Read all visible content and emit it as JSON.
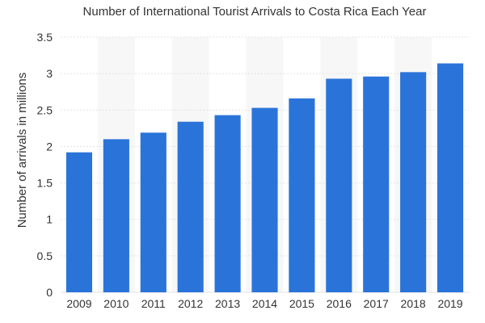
{
  "chart_data": {
    "type": "bar",
    "title": "Number of International Tourist Arrivals to Costa Rica Each Year",
    "xlabel": "",
    "ylabel": "Number of arrivals in millions",
    "categories": [
      "2009",
      "2010",
      "2011",
      "2012",
      "2013",
      "2014",
      "2015",
      "2016",
      "2017",
      "2018",
      "2019"
    ],
    "values": [
      1.92,
      2.1,
      2.19,
      2.34,
      2.43,
      2.53,
      2.66,
      2.93,
      2.96,
      3.02,
      3.14
    ],
    "ylim": [
      0,
      3.5
    ],
    "yticks": [
      "0",
      "0.5",
      "1",
      "1.5",
      "2",
      "2.5",
      "3",
      "3.5"
    ],
    "grid": true,
    "bar_color": "#2a74d9",
    "alt_band_color": "#f7f7f7",
    "grid_color": "#e3e3e3"
  }
}
